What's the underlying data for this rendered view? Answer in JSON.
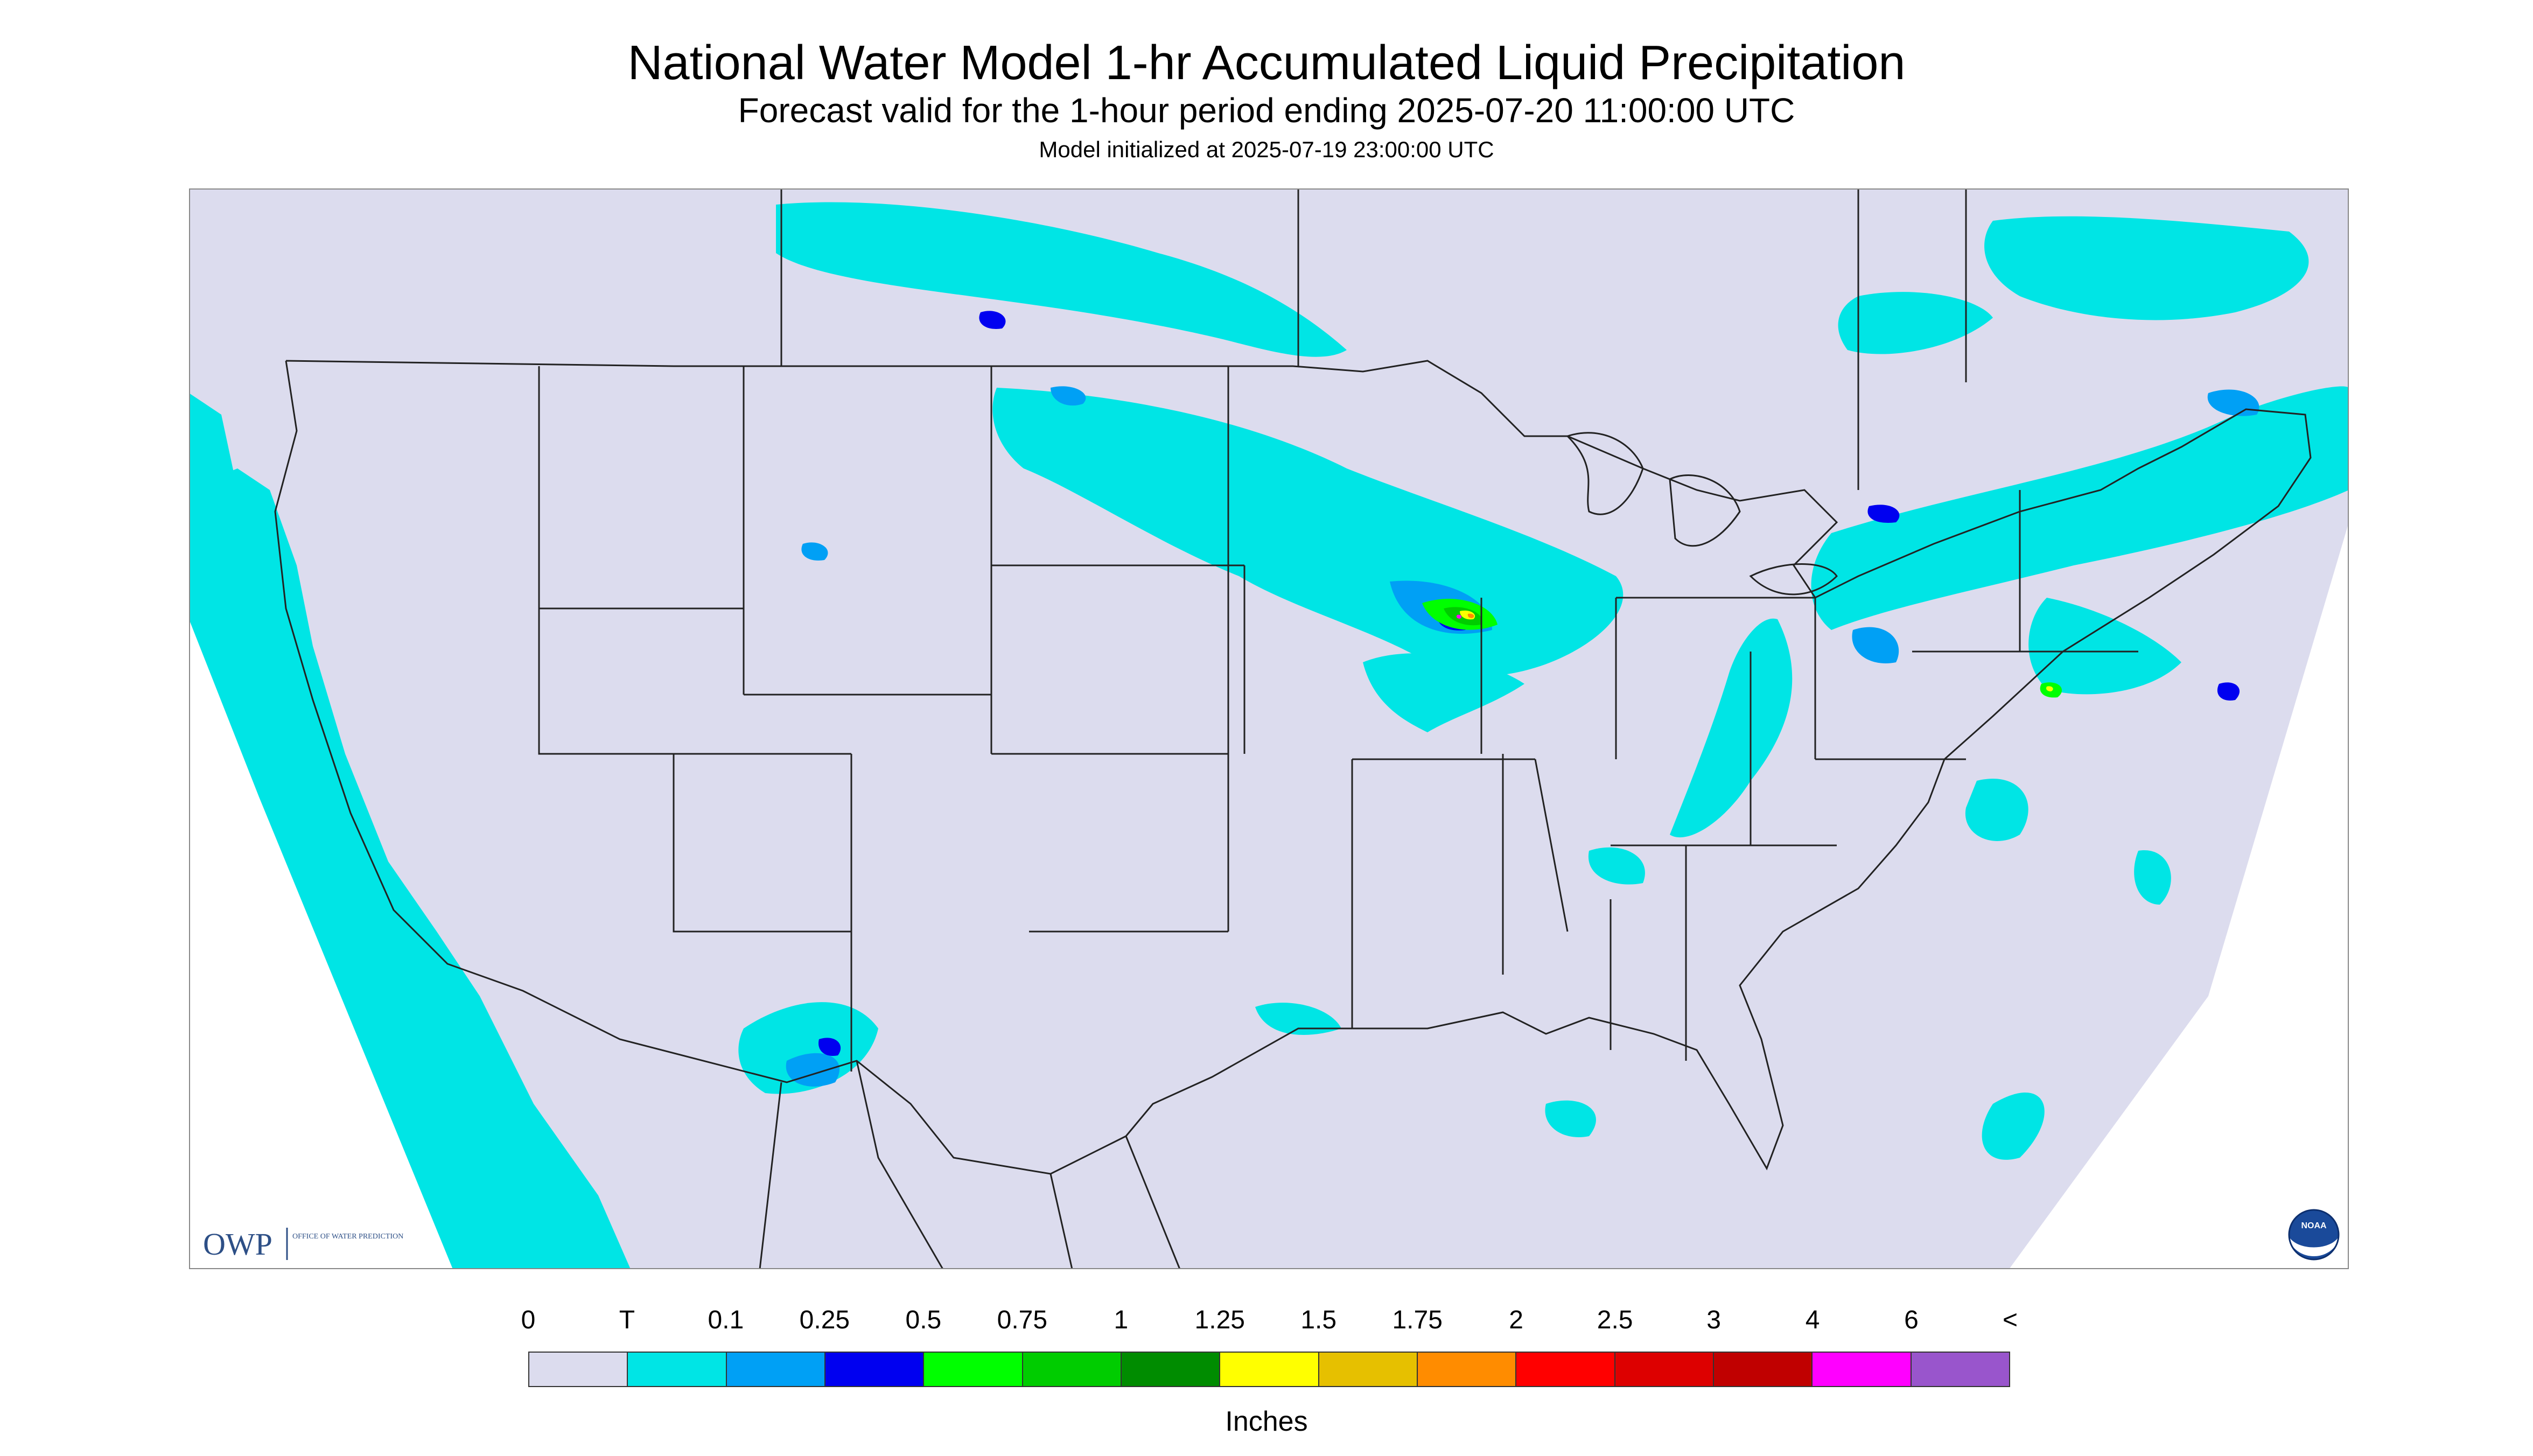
{
  "header": {
    "title": "National Water Model 1-hr Accumulated Liquid Precipitation",
    "subtitle": "Forecast valid for the 1-hour period ending 2025-07-20 11:00:00 UTC",
    "init": "Model initialized at 2025-07-19 23:00:00 UTC"
  },
  "map": {
    "background_color": "#dcdcee",
    "outside_color": "#ffffff",
    "land_line_color": "#222222",
    "logo_owp": {
      "mark": "OWP",
      "text": "OFFICE OF WATER PREDICTION",
      "color": "#2d4f86"
    },
    "logo_noaa": {
      "text": "NOAA"
    }
  },
  "legend": {
    "labels": [
      "0",
      "T",
      "0.1",
      "0.25",
      "0.5",
      "0.75",
      "1",
      "1.25",
      "1.5",
      "1.75",
      "2",
      "2.5",
      "3",
      "4",
      "6",
      "<"
    ],
    "colors": [
      "#dcdcee",
      "#00e5e5",
      "#00a0f5",
      "#0000f0",
      "#00ff00",
      "#00cc00",
      "#008c00",
      "#ffff00",
      "#e6c000",
      "#ff8c00",
      "#ff0000",
      "#dd0000",
      "#c00000",
      "#ff00ff",
      "#9955cc"
    ],
    "units": "Inches"
  }
}
